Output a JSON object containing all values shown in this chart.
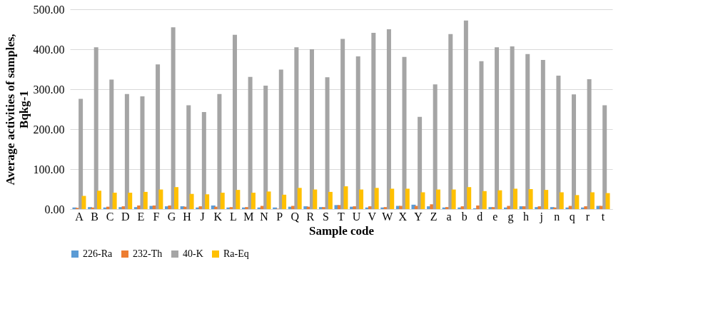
{
  "chart_data": {
    "type": "bar",
    "xlabel": "Sample code",
    "ylabel": "Average activities of samples, Bqkg-1",
    "categories": [
      "A",
      "B",
      "C",
      "D",
      "E",
      "F",
      "G",
      "H",
      "J",
      "K",
      "L",
      "M",
      "N",
      "P",
      "Q",
      "R",
      "S",
      "T",
      "U",
      "V",
      "W",
      "X",
      "Y",
      "Z",
      "a",
      "b",
      "d",
      "e",
      "g",
      "h",
      "j",
      "n",
      "q",
      "r",
      "t"
    ],
    "series": [
      {
        "name": "226-Ra",
        "color": "#5b9bd5",
        "values": [
          4,
          5,
          4,
          5,
          5,
          8,
          7,
          7,
          4,
          9,
          4,
          4,
          4,
          4,
          6,
          7,
          5,
          10,
          6,
          4,
          4,
          8,
          11,
          7,
          4,
          4,
          2,
          5,
          4,
          7,
          5,
          5,
          4,
          4,
          8
        ]
      },
      {
        "name": "232-Th",
        "color": "#ed7d31",
        "values": [
          3,
          4,
          6,
          7,
          9,
          9,
          9,
          6,
          7,
          6,
          5,
          5,
          8,
          1,
          8,
          6,
          5,
          10,
          7,
          7,
          5,
          8,
          8,
          12,
          5,
          7,
          9,
          5,
          8,
          7,
          7,
          4,
          8,
          7,
          8
        ]
      },
      {
        "name": "40-K",
        "color": "#a5a5a5",
        "values": [
          276,
          405,
          324,
          288,
          282,
          362,
          455,
          260,
          243,
          288,
          436,
          331,
          309,
          349,
          405,
          400,
          330,
          426,
          382,
          441,
          450,
          381,
          231,
          312,
          438,
          472,
          370,
          405,
          407,
          388,
          373,
          334,
          287,
          325,
          260
        ]
      },
      {
        "name": "Ra-Eq",
        "color": "#ffc000",
        "values": [
          33,
          46,
          41,
          41,
          43,
          49,
          55,
          38,
          37,
          41,
          48,
          41,
          44,
          36,
          53,
          49,
          43,
          57,
          49,
          53,
          51,
          51,
          42,
          49,
          49,
          55,
          45,
          47,
          51,
          50,
          48,
          42,
          35,
          42,
          40
        ]
      }
    ],
    "ylim": [
      0,
      500
    ],
    "yticks": [
      {
        "value": 0,
        "label": "0.00"
      },
      {
        "value": 100,
        "label": "100.00"
      },
      {
        "value": 200,
        "label": "200.00"
      },
      {
        "value": 300,
        "label": "300.00"
      },
      {
        "value": 400,
        "label": "400.00"
      },
      {
        "value": 500,
        "label": "500.00"
      }
    ],
    "grid": "y",
    "legend": "bottom"
  }
}
